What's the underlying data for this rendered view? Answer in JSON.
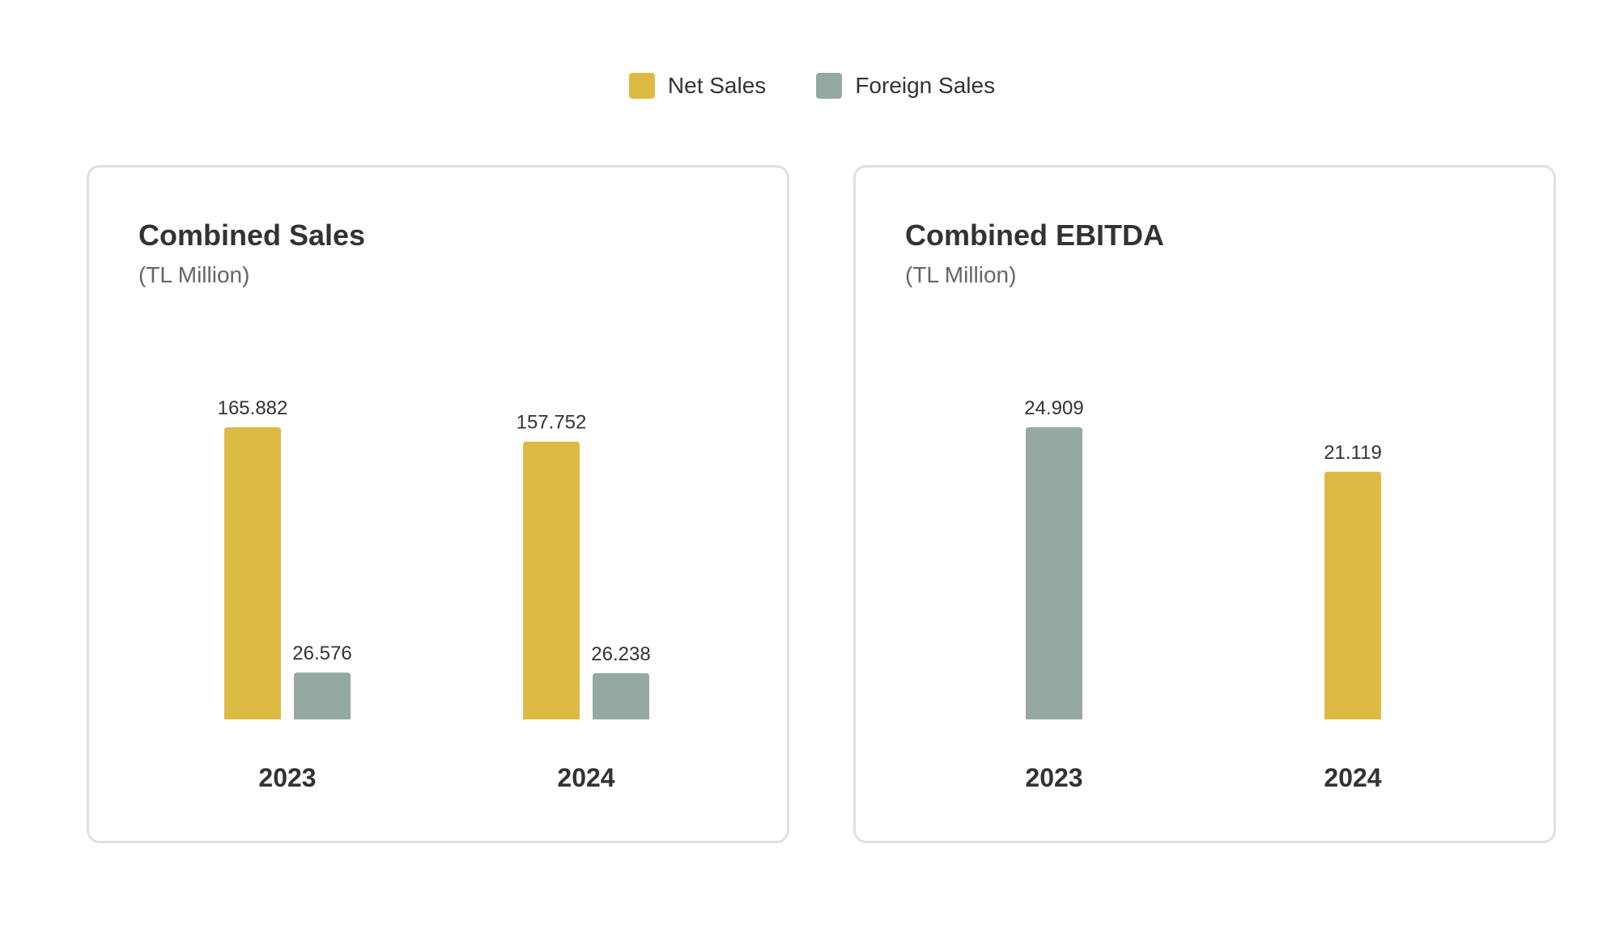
{
  "legend": {
    "items": [
      {
        "label": "Net Sales",
        "color": "#DDBA44"
      },
      {
        "label": "Foreign Sales",
        "color": "#96A9A0"
      }
    ]
  },
  "panels": [
    {
      "title": "Combined Sales",
      "subtitle": "(TL Million)"
    },
    {
      "title": "Combined EBITDA",
      "subtitle": "(TL Million)"
    }
  ],
  "chart_data": [
    {
      "type": "bar",
      "title": "Combined Sales",
      "subtitle": "(TL Million)",
      "categories": [
        "2023",
        "2024"
      ],
      "series": [
        {
          "name": "Net Sales",
          "color": "#DDBA44",
          "values": [
            165882,
            157752
          ],
          "labels": [
            "165.882",
            "157.752"
          ]
        },
        {
          "name": "Foreign Sales",
          "color": "#96A9A0",
          "values": [
            26576,
            26238
          ],
          "labels": [
            "26.576",
            "26.238"
          ]
        }
      ],
      "ylim": [
        0,
        165882
      ],
      "grid": false,
      "legend": "top-center"
    },
    {
      "type": "bar",
      "title": "Combined EBITDA",
      "subtitle": "(TL Million)",
      "categories": [
        "2023",
        "2024"
      ],
      "bars": [
        {
          "value": 24909,
          "label": "24.909",
          "color": "#96A9A0"
        },
        {
          "value": 21119,
          "label": "21.119",
          "color": "#DDBA44"
        }
      ],
      "ylim": [
        0,
        24909
      ],
      "grid": false
    }
  ]
}
